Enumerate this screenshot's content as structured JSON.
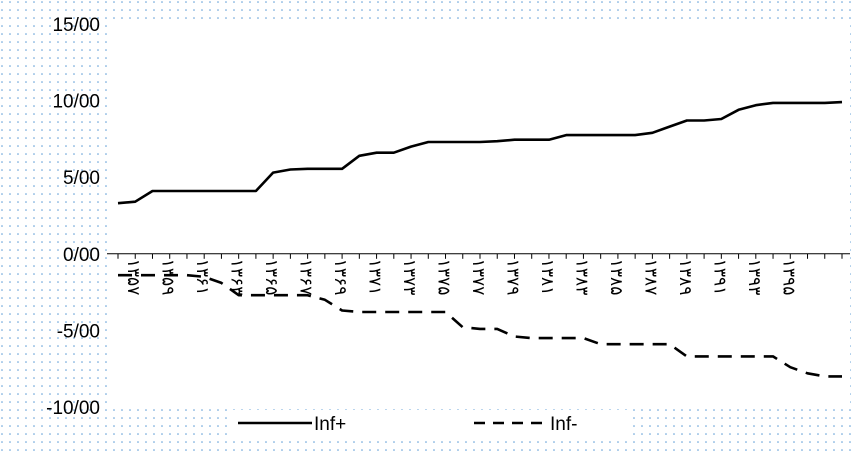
{
  "chart_data": {
    "type": "line",
    "ylim": [
      -10,
      15
    ],
    "yticks": [
      15,
      10,
      5,
      0,
      -5,
      -10
    ],
    "ytick_labels": [
      "15/00",
      "10/00",
      "5/00",
      "0/00",
      "-5/00",
      "-10/00"
    ],
    "x_tick_labels": [
      "۱۳۵۷",
      "۱۳۵۹",
      "۱۳۶۱",
      "۱۳۶۳",
      "۱۳۶۵",
      "۱۳۶۷",
      "۱۳۶۹",
      "۱۳۷۱",
      "۱۳۷۳",
      "۱۳۷۵",
      "۱۳۷۷",
      "۱۳۷۹",
      "۱۳۸۱",
      "۱۳۸۳",
      "۱۳۸۵",
      "۱۳۸۷",
      "۱۳۸۹",
      "۱۳۹۱",
      "۱۳۹۳",
      "۱۳۹۵"
    ],
    "x": [
      "۱۳۵۶",
      "۱۳۵۷",
      "۱۳۵۸",
      "۱۳۵۹",
      "۱۳۶۰",
      "۱۳۶۱",
      "۱۳۶۲",
      "۱۳۶۳",
      "۱۳۶۴",
      "۱۳۶۵",
      "۱۳۶۶",
      "۱۳۶۷",
      "۱۳۶۸",
      "۱۳۶۹",
      "۱۳۷۰",
      "۱۳۷۱",
      "۱۳۷۲",
      "۱۳۷۳",
      "۱۳۷۴",
      "۱۳۷۵",
      "۱۳۷۶",
      "۱۳۷۷",
      "۱۳۷۸",
      "۱۳۷۹",
      "۱۳۸۰",
      "۱۳۸۱",
      "۱۳۸۲",
      "۱۳۸۳",
      "۱۳۸۴",
      "۱۳۸۵",
      "۱۳۸۶",
      "۱۳۸۷",
      "۱۳۸۸",
      "۱۳۸۹",
      "۱۳۹۰",
      "۱۳۹۱",
      "۱۳۹۲",
      "۱۳۹۳",
      "۱۳۹۴",
      "۱۳۹۵",
      "۱۳۹۶",
      "۱۳۹۷",
      "۱۳۹۸"
    ],
    "series": [
      {
        "name": "Inf+",
        "style": "solid",
        "color": "#000000",
        "values": [
          3.3,
          3.4,
          4.1,
          4.1,
          4.1,
          4.1,
          4.1,
          4.1,
          4.1,
          5.3,
          5.5,
          5.55,
          5.55,
          5.55,
          6.4,
          6.6,
          6.6,
          7.0,
          7.3,
          7.3,
          7.3,
          7.3,
          7.35,
          7.45,
          7.45,
          7.45,
          7.75,
          7.75,
          7.75,
          7.75,
          7.75,
          7.9,
          8.3,
          8.7,
          8.7,
          8.8,
          9.4,
          9.7,
          9.85,
          9.85,
          9.85,
          9.85,
          9.9
        ]
      },
      {
        "name": "Inf-",
        "style": "dashed",
        "color": "#000000",
        "values": [
          -1.4,
          -1.4,
          -1.4,
          -1.4,
          -1.4,
          -1.5,
          -1.9,
          -2.7,
          -2.7,
          -2.7,
          -2.7,
          -2.7,
          -3.0,
          -3.7,
          -3.8,
          -3.8,
          -3.8,
          -3.8,
          -3.8,
          -3.8,
          -4.8,
          -4.9,
          -4.9,
          -5.4,
          -5.5,
          -5.5,
          -5.5,
          -5.5,
          -5.9,
          -5.9,
          -5.9,
          -5.9,
          -5.9,
          -6.7,
          -6.7,
          -6.7,
          -6.7,
          -6.7,
          -6.7,
          -7.4,
          -7.8,
          -8.0,
          -8.0
        ]
      }
    ],
    "grid": false,
    "legend_position": "bottom"
  }
}
